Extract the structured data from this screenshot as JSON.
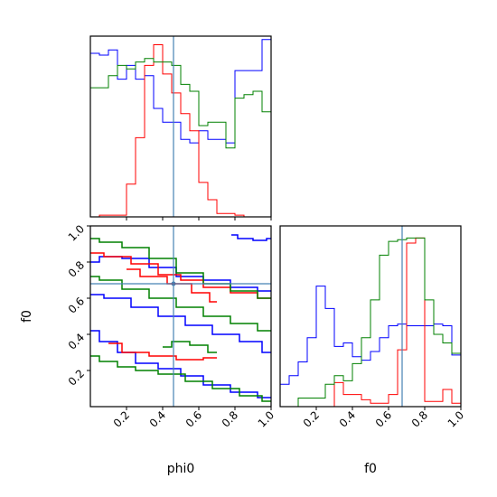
{
  "chart_data": [
    {
      "type": "histogram",
      "panel": "phi0-marginal",
      "xlim": [
        0,
        1
      ],
      "bins": [
        0,
        0.05,
        0.1,
        0.15,
        0.2,
        0.25,
        0.3,
        0.35,
        0.4,
        0.45,
        0.5,
        0.55,
        0.6,
        0.65,
        0.7,
        0.75,
        0.8,
        0.85,
        0.9,
        0.95,
        1
      ],
      "truth": 0.46,
      "colors": {
        "blue": "#0000ff",
        "red": "#ff0000",
        "green": "#008000",
        "truth": "#4682b4"
      },
      "series": [
        {
          "color": "blue",
          "values": [
            0.95,
            0.94,
            0.97,
            0.8,
            0.88,
            0.8,
            0.82,
            0.63,
            0.55,
            0.55,
            0.45,
            0.43,
            0.5,
            0.45,
            0.45,
            0.43,
            0.85,
            0.85,
            0.85,
            1.03
          ]
        },
        {
          "color": "red",
          "values": [
            0,
            0.01,
            0.01,
            0.01,
            0.19,
            0.46,
            0.88,
            1.0,
            0.83,
            0.72,
            0.6,
            0.5,
            0.2,
            0.1,
            0.02,
            0.02,
            0.01,
            0,
            0,
            0
          ]
        },
        {
          "color": "green",
          "values": [
            0.75,
            0.75,
            0.82,
            0.88,
            0.86,
            0.9,
            0.92,
            0.9,
            0.9,
            0.88,
            0.77,
            0.73,
            0.53,
            0.55,
            0.55,
            0.4,
            0.69,
            0.71,
            0.73,
            0.61
          ]
        }
      ]
    },
    {
      "type": "contour",
      "panel": "phi0-vs-f0",
      "xlabel": "phi0",
      "ylabel": "f0",
      "xlim": [
        0,
        1
      ],
      "ylim": [
        0,
        1
      ],
      "xticks": [
        "0.2",
        "0.4",
        "0.6",
        "0.8",
        "1.0"
      ],
      "yticks": [
        "0.2",
        "0.4",
        "0.6",
        "0.8",
        "1.0"
      ],
      "truth": {
        "x": 0.46,
        "y": 0.68
      },
      "contours": [
        {
          "color": "blue",
          "points": [
            [
              0,
              0.8
            ],
            [
              0.1,
              0.83
            ],
            [
              0.25,
              0.82
            ],
            [
              0.4,
              0.77
            ],
            [
              0.55,
              0.72
            ],
            [
              0.7,
              0.7
            ],
            [
              0.85,
              0.66
            ],
            [
              1,
              0.64
            ]
          ]
        },
        {
          "color": "blue",
          "points": [
            [
              0,
              0.62
            ],
            [
              0.15,
              0.6
            ],
            [
              0.3,
              0.55
            ],
            [
              0.45,
              0.5
            ],
            [
              0.6,
              0.45
            ],
            [
              0.75,
              0.4
            ],
            [
              0.9,
              0.36
            ],
            [
              1,
              0.3
            ]
          ]
        },
        {
          "color": "blue",
          "points": [
            [
              0,
              0.42
            ],
            [
              0.1,
              0.36
            ],
            [
              0.2,
              0.3
            ],
            [
              0.3,
              0.24
            ],
            [
              0.45,
              0.21
            ],
            [
              0.55,
              0.17
            ],
            [
              0.7,
              0.12
            ],
            [
              0.85,
              0.08
            ],
            [
              1,
              0.05
            ]
          ]
        },
        {
          "color": "blue",
          "points": [
            [
              0.78,
              0.95
            ],
            [
              0.85,
              0.93
            ],
            [
              0.95,
              0.92
            ],
            [
              1,
              0.93
            ]
          ]
        },
        {
          "color": "red",
          "points": [
            [
              0,
              0.85
            ],
            [
              0.15,
              0.83
            ],
            [
              0.3,
              0.79
            ],
            [
              0.45,
              0.73
            ],
            [
              0.55,
              0.7
            ],
            [
              0.7,
              0.66
            ],
            [
              0.85,
              0.63
            ],
            [
              1,
              0.6
            ]
          ]
        },
        {
          "color": "red",
          "points": [
            [
              0.2,
              0.76
            ],
            [
              0.35,
              0.72
            ],
            [
              0.5,
              0.68
            ],
            [
              0.62,
              0.63
            ],
            [
              0.7,
              0.58
            ]
          ]
        },
        {
          "color": "red",
          "points": [
            [
              0.1,
              0.35
            ],
            [
              0.25,
              0.3
            ],
            [
              0.4,
              0.28
            ],
            [
              0.55,
              0.26
            ],
            [
              0.7,
              0.27
            ]
          ]
        },
        {
          "color": "green",
          "points": [
            [
              0,
              0.93
            ],
            [
              0.1,
              0.91
            ],
            [
              0.25,
              0.88
            ],
            [
              0.4,
              0.82
            ],
            [
              0.55,
              0.74
            ],
            [
              0.7,
              0.68
            ],
            [
              0.85,
              0.64
            ],
            [
              1,
              0.6
            ]
          ]
        },
        {
          "color": "green",
          "points": [
            [
              0,
              0.72
            ],
            [
              0.1,
              0.7
            ],
            [
              0.25,
              0.65
            ],
            [
              0.4,
              0.6
            ],
            [
              0.55,
              0.55
            ],
            [
              0.7,
              0.5
            ],
            [
              0.85,
              0.46
            ],
            [
              1,
              0.42
            ]
          ]
        },
        {
          "color": "green",
          "points": [
            [
              0,
              0.28
            ],
            [
              0.1,
              0.25
            ],
            [
              0.2,
              0.22
            ],
            [
              0.3,
              0.2
            ],
            [
              0.45,
              0.18
            ],
            [
              0.6,
              0.14
            ],
            [
              0.75,
              0.1
            ],
            [
              0.9,
              0.06
            ],
            [
              1,
              0.03
            ]
          ]
        },
        {
          "color": "green",
          "points": [
            [
              0.4,
              0.33
            ],
            [
              0.5,
              0.36
            ],
            [
              0.6,
              0.34
            ],
            [
              0.7,
              0.3
            ]
          ]
        }
      ]
    },
    {
      "type": "histogram",
      "panel": "f0-marginal",
      "xlabel": "f0",
      "xlim": [
        0,
        1
      ],
      "xticks": [
        "0.2",
        "0.4",
        "0.6",
        "0.8",
        "1.0"
      ],
      "truth": 0.675,
      "series": [
        {
          "color": "blue",
          "values": [
            0.13,
            0.18,
            0.26,
            0.4,
            0.7,
            0.57,
            0.35,
            0.37,
            0.29,
            0.27,
            0.32,
            0.4,
            0.47,
            0.48,
            0.47,
            0.47,
            0.47,
            0.48,
            0.47,
            0.3
          ]
        },
        {
          "color": "red",
          "values": [
            0,
            0,
            0,
            0,
            0,
            0,
            0.14,
            0.07,
            0.07,
            0.04,
            0.02,
            0.02,
            0.07,
            0.33,
            0.95,
            0.98,
            0.03,
            0.03,
            0.1,
            0.02
          ]
        },
        {
          "color": "green",
          "values": [
            0,
            0,
            0.05,
            0.05,
            0.05,
            0.13,
            0.18,
            0.15,
            0.25,
            0.4,
            0.62,
            0.88,
            0.96,
            0.97,
            0.98,
            0.98,
            0.62,
            0.42,
            0.37,
            0.31
          ]
        }
      ]
    }
  ]
}
